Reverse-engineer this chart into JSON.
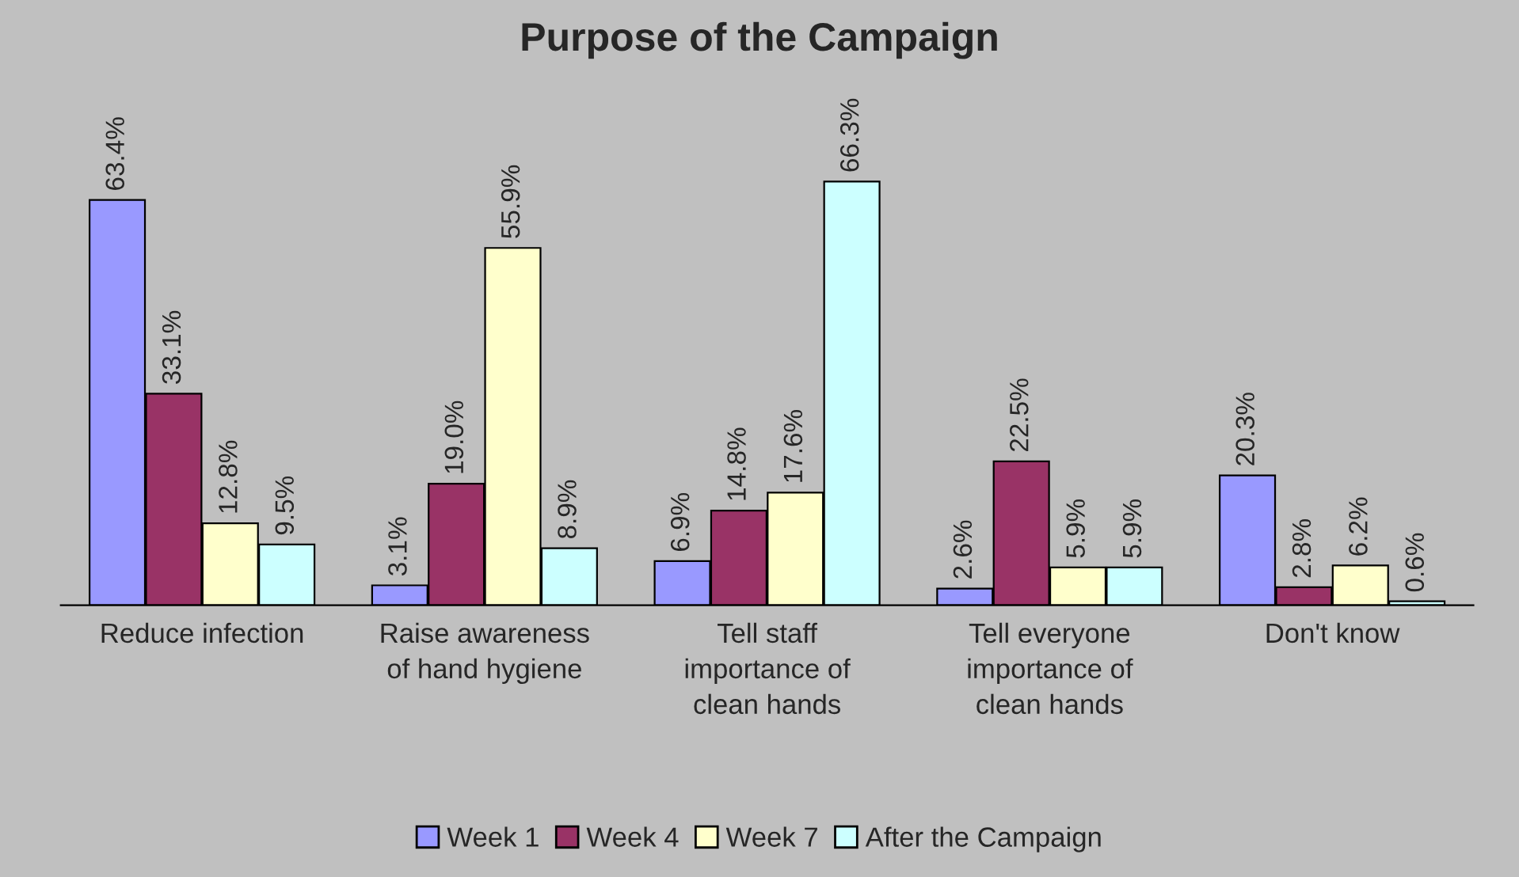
{
  "chart_data": {
    "type": "bar",
    "title": "Purpose of the Campaign",
    "categories": [
      "Reduce infection",
      "Raise awareness\nof hand hygiene",
      "Tell staff\nimportance of\nclean hands",
      "Tell everyone\nimportance of\nclean hands",
      "Don't know"
    ],
    "series": [
      {
        "name": "Week 1",
        "color": "#9999ff",
        "values": [
          63.4,
          3.1,
          6.9,
          2.6,
          20.3
        ],
        "value_labels": [
          "63.4%",
          "3.1%",
          "6.9%",
          "2.6%",
          "20.3%"
        ]
      },
      {
        "name": "Week 4",
        "color": "#993366",
        "values": [
          33.1,
          19.0,
          14.8,
          22.5,
          2.8
        ],
        "value_labels": [
          "33.1%",
          "19.0%",
          "14.8%",
          "22.5%",
          "2.8%"
        ]
      },
      {
        "name": "Week 7",
        "color": "#ffffcc",
        "values": [
          12.8,
          55.9,
          17.6,
          5.9,
          6.2
        ],
        "value_labels": [
          "12.8%",
          "55.9%",
          "17.6%",
          "5.9%",
          "6.2%"
        ]
      },
      {
        "name": "After the Campaign",
        "color": "#ccffff",
        "values": [
          9.5,
          8.9,
          66.3,
          5.9,
          0.6
        ],
        "value_labels": [
          "9.5%",
          "8.9%",
          "66.3%",
          "5.9%",
          "0.6%"
        ]
      }
    ],
    "legend": "bottom",
    "grid": false
  }
}
